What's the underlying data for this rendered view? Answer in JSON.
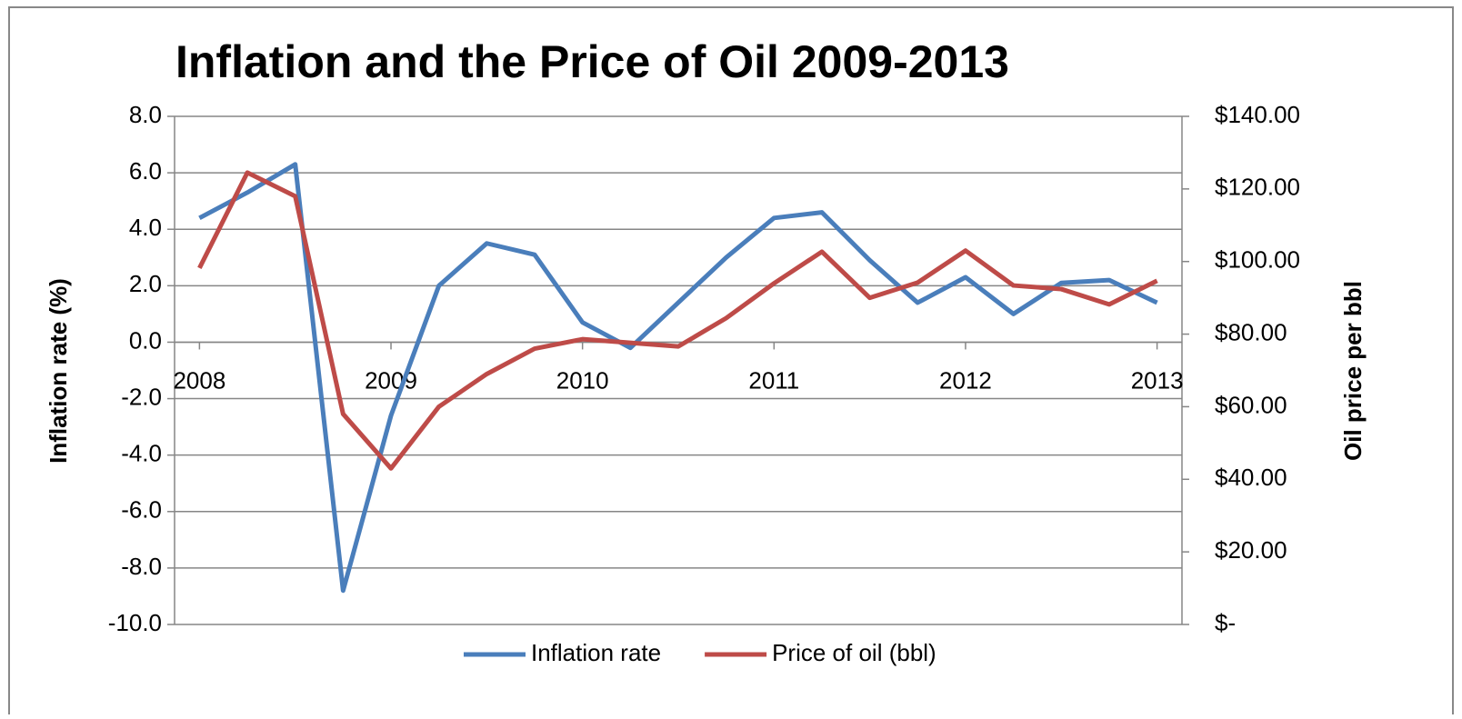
{
  "chart_data": {
    "type": "line",
    "title": "Inflation and the Price of Oil 2009-2013",
    "ylabel": "Inflation rate (%)",
    "y2label": "Oil price per bbl",
    "x": [
      2008,
      2008.25,
      2008.5,
      2008.75,
      2009,
      2009.25,
      2009.5,
      2009.75,
      2010,
      2010.25,
      2010.5,
      2010.75,
      2011,
      2011.25,
      2011.5,
      2011.75,
      2012,
      2012.25,
      2012.5,
      2012.75,
      2013
    ],
    "xlim": [
      2007.87,
      2013.13
    ],
    "xticks": [
      2008,
      2009,
      2010,
      2011,
      2012,
      2013
    ],
    "ylim": [
      -10,
      8
    ],
    "yticks": [
      {
        "value": -10,
        "label": "-10.0"
      },
      {
        "value": -8,
        "label": "-8.0"
      },
      {
        "value": -6,
        "label": "-6.0"
      },
      {
        "value": -4,
        "label": "-4.0"
      },
      {
        "value": -2,
        "label": "-2.0"
      },
      {
        "value": 0,
        "label": "0.0"
      },
      {
        "value": 2,
        "label": "2.0"
      },
      {
        "value": 4,
        "label": "4.0"
      },
      {
        "value": 6,
        "label": "6.0"
      },
      {
        "value": 8,
        "label": "8.0"
      }
    ],
    "y2lim": [
      0,
      140
    ],
    "y2ticks": [
      {
        "value": 0,
        "label": "$-"
      },
      {
        "value": 20,
        "label": "$20.00"
      },
      {
        "value": 40,
        "label": "$40.00"
      },
      {
        "value": 60,
        "label": "$60.00"
      },
      {
        "value": 80,
        "label": "$80.00"
      },
      {
        "value": 100,
        "label": "$100.00"
      },
      {
        "value": 120,
        "label": "$120.00"
      },
      {
        "value": 140,
        "label": "$140.00"
      }
    ],
    "grid": true,
    "legend": "bottom",
    "series": [
      {
        "name": "Inflation rate",
        "color": "#4a7ebb",
        "values": [
          4.4,
          5.3,
          6.3,
          -8.8,
          -2.6,
          2.0,
          3.5,
          3.1,
          0.7,
          -0.2,
          1.4,
          3.0,
          4.4,
          4.6,
          2.9,
          1.4,
          2.3,
          1.0,
          2.1,
          2.2,
          1.4
        ]
      },
      {
        "name": "Price of oil (bbl)",
        "color": "#be4b48",
        "axis": "y2",
        "values": [
          98.2,
          124.5,
          118,
          58,
          43,
          60,
          69,
          76,
          78.6,
          77.6,
          76.6,
          84.4,
          94,
          102.7,
          90,
          94.2,
          103,
          93.4,
          92.4,
          88.2,
          94.7
        ]
      }
    ]
  }
}
